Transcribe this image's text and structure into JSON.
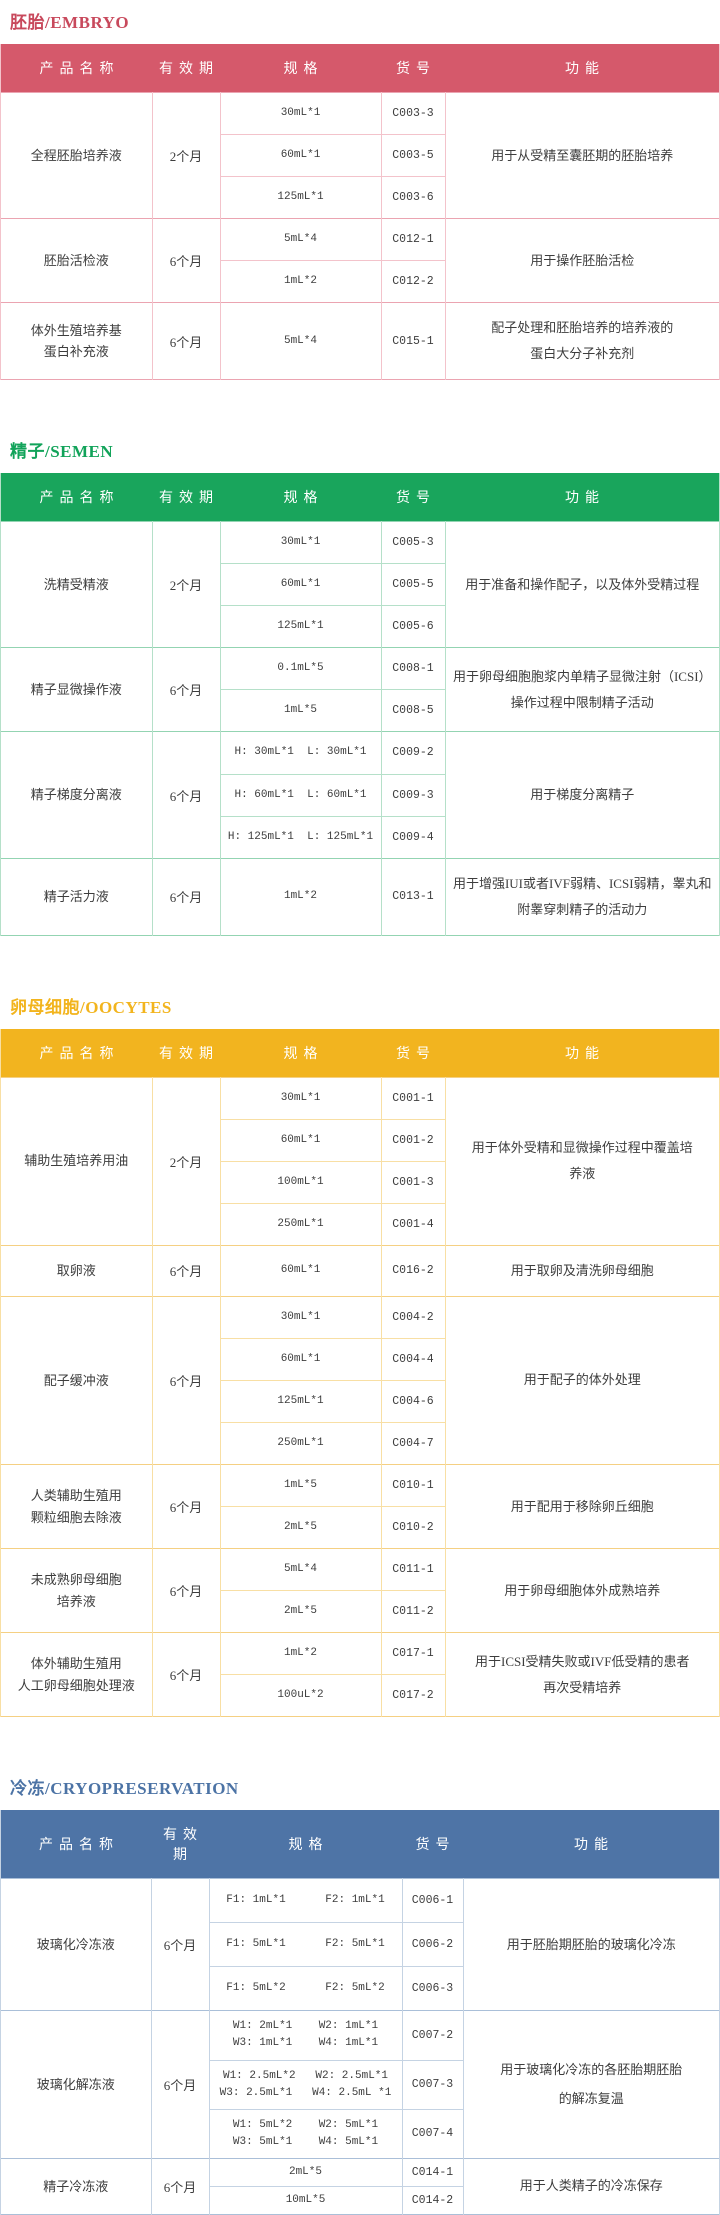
{
  "columns": [
    "产品名称",
    "有效期",
    "规格",
    "货号",
    "功能"
  ],
  "sections": [
    {
      "id": "embryo",
      "title": "胚胎/EMBRYO",
      "colors": {
        "accent": "#c8495c",
        "header_bg": "#d5596b",
        "line": "#f3c3cb",
        "line_strong": "#eba4b1"
      },
      "products": [
        {
          "name": "全程胚胎培养液",
          "validity": "2个月",
          "function": "用于从受精至囊胚期的胚胎培养",
          "variants": [
            {
              "spec": "30mL*1",
              "cat": "C003-3"
            },
            {
              "spec": "60mL*1",
              "cat": "C003-5"
            },
            {
              "spec": "125mL*1",
              "cat": "C003-6"
            }
          ]
        },
        {
          "name": "胚胎活检液",
          "validity": "6个月",
          "function": "用于操作胚胎活检",
          "variants": [
            {
              "spec": "5mL*4",
              "cat": "C012-1"
            },
            {
              "spec": "1mL*2",
              "cat": "C012-2"
            }
          ]
        },
        {
          "name": "体外生殖培养基\n蛋白补充液",
          "validity": "6个月",
          "function": "配子处理和胚胎培养的培养液的\n蛋白大分子补充剂",
          "variants": [
            {
              "spec": "5mL*4",
              "cat": "C015-1"
            }
          ]
        }
      ]
    },
    {
      "id": "semen",
      "title": "精子/SEMEN",
      "colors": {
        "accent": "#12a35a",
        "header_bg": "#19a55c",
        "line": "#b5e0c9",
        "line_strong": "#93d4b2"
      },
      "products": [
        {
          "name": "洗精受精液",
          "validity": "2个月",
          "function": "用于准备和操作配子，以及体外受精过程",
          "variants": [
            {
              "spec": "30mL*1",
              "cat": "C005-3"
            },
            {
              "spec": "60mL*1",
              "cat": "C005-5"
            },
            {
              "spec": "125mL*1",
              "cat": "C005-6"
            }
          ]
        },
        {
          "name": "精子显微操作液",
          "validity": "6个月",
          "function": "用于卵母细胞胞浆内单精子显微注射（ICSI）\n操作过程中限制精子活动",
          "variants": [
            {
              "spec": "0.1mL*5",
              "cat": "C008-1"
            },
            {
              "spec": "1mL*5",
              "cat": "C008-5"
            }
          ]
        },
        {
          "name": "精子梯度分离液",
          "validity": "6个月",
          "function": "用于梯度分离精子",
          "variants": [
            {
              "spec": "H: 30mL*1  L: 30mL*1",
              "cat": "C009-2"
            },
            {
              "spec": "H: 60mL*1  L: 60mL*1",
              "cat": "C009-3"
            },
            {
              "spec": "H: 125mL*1  L: 125mL*1",
              "cat": "C009-4"
            }
          ]
        },
        {
          "name": "精子活力液",
          "validity": "6个月",
          "function": "用于增强IUI或者IVF弱精、ICSI弱精，睾丸和\n附睾穿刺精子的活动力",
          "variants": [
            {
              "spec": "1mL*2",
              "cat": "C013-1"
            }
          ]
        }
      ]
    },
    {
      "id": "oocytes",
      "title": "卵母细胞/OOCYTES",
      "colors": {
        "accent": "#f2b41d",
        "header_bg": "#f2b41f",
        "line": "#f8dfa4",
        "line_strong": "#f5d083"
      },
      "products": [
        {
          "name": "辅助生殖培养用油",
          "validity": "2个月",
          "function": "用于体外受精和显微操作过程中覆盖培\n养液",
          "variants": [
            {
              "spec": "30mL*1",
              "cat": "C001-1"
            },
            {
              "spec": "60mL*1",
              "cat": "C001-2"
            },
            {
              "spec": "100mL*1",
              "cat": "C001-3"
            },
            {
              "spec": "250mL*1",
              "cat": "C001-4"
            }
          ]
        },
        {
          "name": "取卵液",
          "validity": "6个月",
          "function": "用于取卵及清洗卵母细胞",
          "variants": [
            {
              "spec": "60mL*1",
              "cat": "C016-2"
            }
          ]
        },
        {
          "name": "配子缓冲液",
          "validity": "6个月",
          "function": "用于配子的体外处理",
          "variants": [
            {
              "spec": "30mL*1",
              "cat": "C004-2"
            },
            {
              "spec": "60mL*1",
              "cat": "C004-4"
            },
            {
              "spec": "125mL*1",
              "cat": "C004-6"
            },
            {
              "spec": "250mL*1",
              "cat": "C004-7"
            }
          ]
        },
        {
          "name": "人类辅助生殖用\n颗粒细胞去除液",
          "validity": "6个月",
          "function": "用于配用于移除卵丘细胞",
          "variants": [
            {
              "spec": "1mL*5",
              "cat": "C010-1"
            },
            {
              "spec": "2mL*5",
              "cat": "C010-2"
            }
          ]
        },
        {
          "name": "未成熟卵母细胞\n培养液",
          "validity": "6个月",
          "function": "用于卵母细胞体外成熟培养",
          "variants": [
            {
              "spec": "5mL*4",
              "cat": "C011-1"
            },
            {
              "spec": "2mL*5",
              "cat": "C011-2"
            }
          ]
        },
        {
          "name": "体外辅助生殖用\n人工卵母细胞处理液",
          "validity": "6个月",
          "function": "用于ICSI受精失败或IVF低受精的患者\n再次受精培养",
          "variants": [
            {
              "spec": "1mL*2",
              "cat": "C017-1"
            },
            {
              "spec": "100uL*2",
              "cat": "C017-2"
            }
          ]
        }
      ]
    },
    {
      "id": "cryopreservation",
      "title": "冷冻/CRYOPRESERVATION",
      "colors": {
        "accent": "#4c73a5",
        "header_bg": "#4e74a6",
        "line": "#c5d3e3",
        "line_strong": "#aabfd8"
      },
      "products": [
        {
          "name": "玻璃化冷冻液",
          "validity": "6个月",
          "function": "用于胚胎期胚胎的玻璃化冷冻",
          "variants": [
            {
              "spec": "F1: 1mL*1      F2: 1mL*1",
              "cat": "C006-1"
            },
            {
              "spec": "F1: 5mL*1      F2: 5mL*1",
              "cat": "C006-2"
            },
            {
              "spec": "F1: 5mL*2      F2: 5mL*2",
              "cat": "C006-3"
            }
          ]
        },
        {
          "name": "玻璃化解冻液",
          "validity": "6个月",
          "function": "用于玻璃化冷冻的各胚胎期胚胎\n的解冻复温",
          "variants": [
            {
              "spec": "W1: 2mL*1    W2: 1mL*1\nW3: 1mL*1    W4: 1mL*1",
              "cat": "C007-2"
            },
            {
              "spec": "W1: 2.5mL*2   W2: 2.5mL*1\nW3: 2.5mL*1   W4: 2.5mL *1",
              "cat": "C007-3"
            },
            {
              "spec": "W1: 5mL*2    W2: 5mL*1\nW3: 5mL*1    W4: 5mL*1",
              "cat": "C007-4"
            }
          ]
        },
        {
          "name": "精子冷冻液",
          "validity": "6个月",
          "function": "用于人类精子的冷冻保存",
          "variants": [
            {
              "spec": "2mL*5",
              "cat": "C014-1"
            },
            {
              "spec": "10mL*5",
              "cat": "C014-2"
            }
          ]
        }
      ]
    }
  ]
}
